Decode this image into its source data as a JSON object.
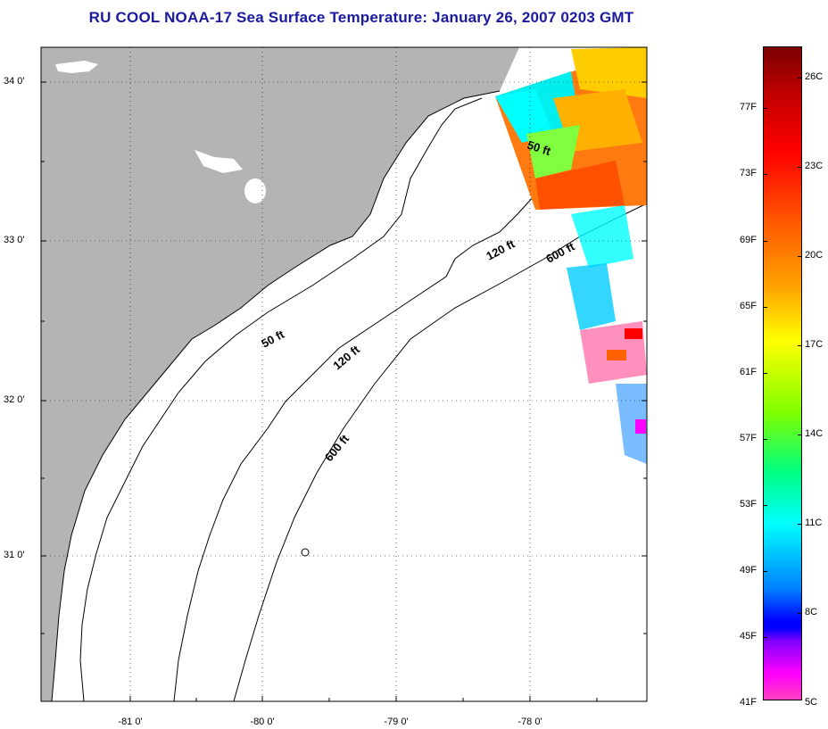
{
  "title": "RU COOL  NOAA-17  Sea Surface Temperature:  January 26, 2007 0203 GMT",
  "lat_labels": [
    "34 0'",
    "33 0'",
    "32 0'",
    "31 0'"
  ],
  "lon_labels": [
    "-81 0'",
    "-80 0'",
    "-79 0'",
    "-78 0'"
  ],
  "contours": [
    "50 ft",
    "120 ft",
    "600 ft",
    "50 ft",
    "120 ft",
    "600 ft"
  ],
  "colorbar": {
    "fahrenheit": [
      "77F",
      "73F",
      "69F",
      "65F",
      "61F",
      "57F",
      "53F",
      "49F",
      "45F",
      "41F"
    ],
    "celsius": [
      "26C",
      "23C",
      "20C",
      "17C",
      "14C",
      "11C",
      "8C",
      "5C"
    ],
    "range_c": [
      5,
      27
    ],
    "colors": [
      "#7a0000",
      "#ff0000",
      "#ffa500",
      "#ffff00",
      "#00ff80",
      "#00ffff",
      "#0000ff",
      "#ff00ff"
    ]
  },
  "colors": {
    "land": "#b4b4b4",
    "title": "#1a1aa0"
  }
}
